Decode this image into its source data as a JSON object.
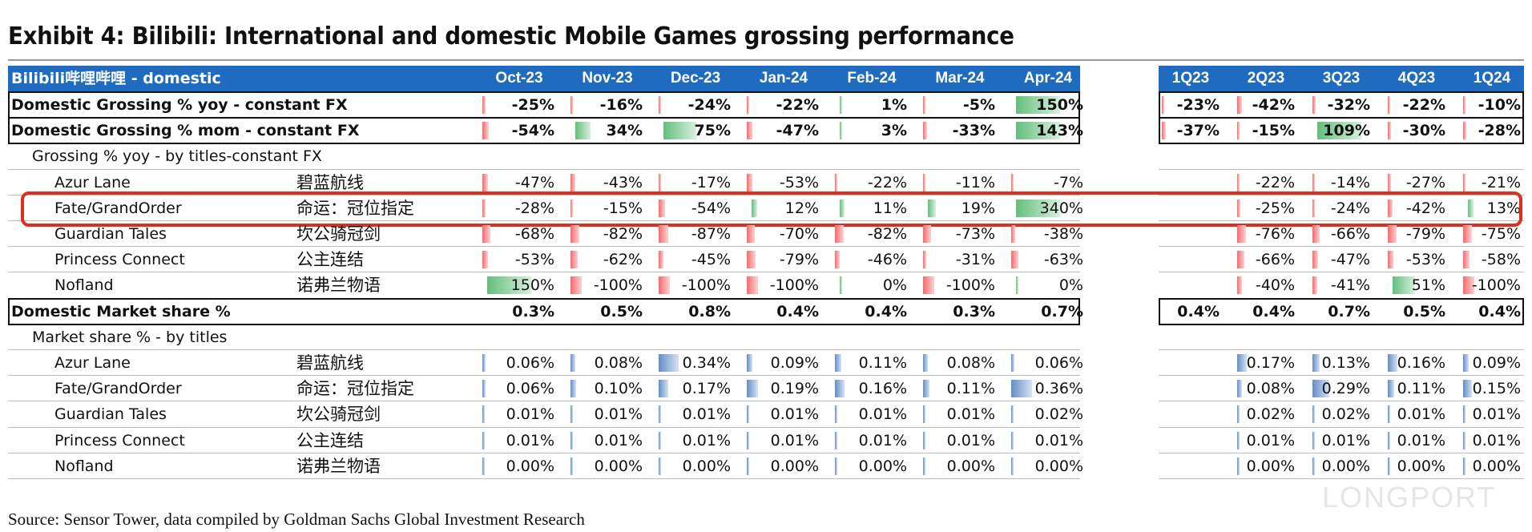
{
  "title": "Exhibit 4: Bilibili: International and domestic Mobile Games grossing performance",
  "source": "Source: Sensor Tower, data compiled by Goldman Sachs Global Investment Research",
  "watermark": "LONGPORT",
  "colors": {
    "header_bg": "#1f6bbf",
    "positive_bar": "#63be7b",
    "negative_bar": "#f8696b",
    "share_bar": "#638ec6",
    "highlight": "#d9301f"
  },
  "chart_data": {
    "type": "table",
    "header_label": "Bilibili哔哩哔哩 - domestic",
    "monthly_columns": [
      "Oct-23",
      "Nov-23",
      "Dec-23",
      "Jan-24",
      "Feb-24",
      "Mar-24",
      "Apr-24"
    ],
    "quarterly_columns": [
      "1Q23",
      "2Q23",
      "3Q23",
      "4Q23",
      "1Q24"
    ],
    "rows": [
      {
        "label": "Domestic Grossing % yoy - constant FX",
        "cn": "",
        "style": "bold-box",
        "bar_type": "pct",
        "monthly": [
          "-25%",
          "-16%",
          "-24%",
          "-22%",
          "1%",
          "-5%",
          "150%"
        ],
        "monthly_num": [
          -25,
          -16,
          -24,
          -22,
          1,
          -5,
          150
        ],
        "quarterly": [
          "-23%",
          "-42%",
          "-32%",
          "-22%",
          "-10%"
        ],
        "quarterly_num": [
          -23,
          -42,
          -32,
          -22,
          -10
        ]
      },
      {
        "label": "Domestic Grossing % mom - constant FX",
        "cn": "",
        "style": "bold-box",
        "bar_type": "pct",
        "monthly": [
          "-54%",
          "34%",
          "75%",
          "-47%",
          "3%",
          "-33%",
          "143%"
        ],
        "monthly_num": [
          -54,
          34,
          75,
          -47,
          3,
          -33,
          143
        ],
        "quarterly": [
          "-37%",
          "-15%",
          "109%",
          "-30%",
          "-28%"
        ],
        "quarterly_num": [
          -37,
          -15,
          109,
          -30,
          -28
        ]
      },
      {
        "label": "Grossing % yoy - by titles-constant FX",
        "cn": "",
        "style": "section",
        "bar_type": "none",
        "monthly": [],
        "monthly_num": [],
        "quarterly": [],
        "quarterly_num": []
      },
      {
        "label": "Azur Lane",
        "cn": "碧蓝航线",
        "style": "indent",
        "bar_type": "pct",
        "monthly": [
          "-47%",
          "-43%",
          "-17%",
          "-53%",
          "-22%",
          "-11%",
          "-7%"
        ],
        "monthly_num": [
          -47,
          -43,
          -17,
          -53,
          -22,
          -11,
          -7
        ],
        "quarterly": [
          "",
          "-22%",
          "-14%",
          "-27%",
          "-21%"
        ],
        "quarterly_num": [
          null,
          -22,
          -14,
          -27,
          -21
        ]
      },
      {
        "label": "Fate/GrandOrder",
        "cn": "命运：冠位指定",
        "style": "indent",
        "bar_type": "pct",
        "monthly": [
          "-28%",
          "-15%",
          "-54%",
          "12%",
          "11%",
          "19%",
          "340%"
        ],
        "monthly_num": [
          -28,
          -15,
          -54,
          12,
          11,
          19,
          340
        ],
        "quarterly": [
          "",
          "-25%",
          "-24%",
          "-42%",
          "13%"
        ],
        "quarterly_num": [
          null,
          -25,
          -24,
          -42,
          13
        ]
      },
      {
        "label": "Guardian Tales",
        "cn": "坎公骑冠剑",
        "style": "indent",
        "bar_type": "pct",
        "monthly": [
          "-68%",
          "-82%",
          "-87%",
          "-70%",
          "-82%",
          "-73%",
          "-38%"
        ],
        "monthly_num": [
          -68,
          -82,
          -87,
          -70,
          -82,
          -73,
          -38
        ],
        "quarterly": [
          "",
          "-76%",
          "-66%",
          "-79%",
          "-75%"
        ],
        "quarterly_num": [
          null,
          -76,
          -66,
          -79,
          -75
        ]
      },
      {
        "label": "Princess Connect",
        "cn": "公主连结",
        "style": "indent",
        "bar_type": "pct",
        "monthly": [
          "-53%",
          "-62%",
          "-45%",
          "-79%",
          "-46%",
          "-31%",
          "-63%"
        ],
        "monthly_num": [
          -53,
          -62,
          -45,
          -79,
          -46,
          -31,
          -63
        ],
        "quarterly": [
          "",
          "-66%",
          "-47%",
          "-53%",
          "-58%"
        ],
        "quarterly_num": [
          null,
          -66,
          -47,
          -53,
          -58
        ]
      },
      {
        "label": "Nofland",
        "cn": "诺弗兰物语",
        "style": "indent",
        "bar_type": "pct",
        "monthly": [
          "150%",
          "-100%",
          "-100%",
          "-100%",
          "0%",
          "-100%",
          "0%"
        ],
        "monthly_num": [
          150,
          -100,
          -100,
          -100,
          0,
          -100,
          0
        ],
        "quarterly": [
          "",
          "-40%",
          "-41%",
          "51%",
          "-100%"
        ],
        "quarterly_num": [
          null,
          -40,
          -41,
          51,
          -100
        ]
      },
      {
        "label": "Domestic Market share %",
        "cn": "",
        "style": "bold-box",
        "bar_type": "none",
        "monthly": [
          "0.3%",
          "0.5%",
          "0.8%",
          "0.4%",
          "0.4%",
          "0.3%",
          "0.7%"
        ],
        "monthly_num": [
          0.3,
          0.5,
          0.8,
          0.4,
          0.4,
          0.3,
          0.7
        ],
        "quarterly": [
          "0.4%",
          "0.4%",
          "0.7%",
          "0.5%",
          "0.4%"
        ],
        "quarterly_num": [
          0.4,
          0.4,
          0.7,
          0.5,
          0.4
        ]
      },
      {
        "label": "Market share % - by titles",
        "cn": "",
        "style": "section",
        "bar_type": "none",
        "monthly": [],
        "monthly_num": [],
        "quarterly": [],
        "quarterly_num": []
      },
      {
        "label": "Azur Lane",
        "cn": "碧蓝航线",
        "style": "indent",
        "bar_type": "share",
        "monthly": [
          "0.06%",
          "0.08%",
          "0.34%",
          "0.09%",
          "0.11%",
          "0.08%",
          "0.06%"
        ],
        "monthly_num": [
          0.06,
          0.08,
          0.34,
          0.09,
          0.11,
          0.08,
          0.06
        ],
        "quarterly": [
          "",
          "0.17%",
          "0.13%",
          "0.16%",
          "0.09%"
        ],
        "quarterly_num": [
          null,
          0.17,
          0.13,
          0.16,
          0.09
        ]
      },
      {
        "label": "Fate/GrandOrder",
        "cn": "命运：冠位指定",
        "style": "indent",
        "bar_type": "share",
        "monthly": [
          "0.06%",
          "0.10%",
          "0.17%",
          "0.19%",
          "0.16%",
          "0.11%",
          "0.36%"
        ],
        "monthly_num": [
          0.06,
          0.1,
          0.17,
          0.19,
          0.16,
          0.11,
          0.36
        ],
        "quarterly": [
          "",
          "0.08%",
          "0.29%",
          "0.11%",
          "0.15%"
        ],
        "quarterly_num": [
          null,
          0.08,
          0.29,
          0.11,
          0.15
        ]
      },
      {
        "label": "Guardian Tales",
        "cn": "坎公骑冠剑",
        "style": "indent",
        "bar_type": "share",
        "monthly": [
          "0.01%",
          "0.01%",
          "0.01%",
          "0.01%",
          "0.01%",
          "0.01%",
          "0.02%"
        ],
        "monthly_num": [
          0.01,
          0.01,
          0.01,
          0.01,
          0.01,
          0.01,
          0.02
        ],
        "quarterly": [
          "",
          "0.02%",
          "0.02%",
          "0.01%",
          "0.01%"
        ],
        "quarterly_num": [
          null,
          0.02,
          0.02,
          0.01,
          0.01
        ]
      },
      {
        "label": "Princess Connect",
        "cn": "公主连结",
        "style": "indent",
        "bar_type": "share",
        "monthly": [
          "0.01%",
          "0.01%",
          "0.01%",
          "0.01%",
          "0.01%",
          "0.01%",
          "0.01%"
        ],
        "monthly_num": [
          0.01,
          0.01,
          0.01,
          0.01,
          0.01,
          0.01,
          0.01
        ],
        "quarterly": [
          "",
          "0.01%",
          "0.01%",
          "0.01%",
          "0.01%"
        ],
        "quarterly_num": [
          null,
          0.01,
          0.01,
          0.01,
          0.01
        ]
      },
      {
        "label": "Nofland",
        "cn": "诺弗兰物语",
        "style": "indent",
        "bar_type": "share",
        "monthly": [
          "0.00%",
          "0.00%",
          "0.00%",
          "0.00%",
          "0.00%",
          "0.00%",
          "0.00%"
        ],
        "monthly_num": [
          0,
          0,
          0,
          0,
          0,
          0,
          0
        ],
        "quarterly": [
          "",
          "0.00%",
          "0.00%",
          "0.00%",
          "0.00%"
        ],
        "quarterly_num": [
          null,
          0,
          0,
          0,
          0
        ]
      }
    ],
    "highlighted_row": "Fate/GrandOrder"
  }
}
